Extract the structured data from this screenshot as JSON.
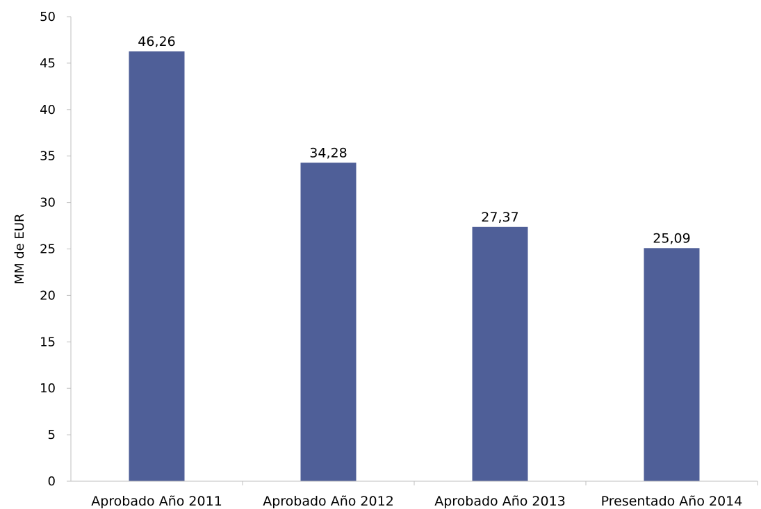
{
  "chart_data": {
    "type": "bar",
    "categories": [
      "Aprobado Año 2011",
      "Aprobado Año 2012",
      "Aprobado Año 2013",
      "Presentado Año 2014"
    ],
    "values": [
      46.26,
      34.28,
      27.37,
      25.09
    ],
    "value_labels": [
      "46,26",
      "34,28",
      "27,37",
      "25,09"
    ],
    "ylabel": "MM de EUR",
    "xlabel": "",
    "ylim": [
      0,
      50
    ],
    "yticks": [
      0,
      5,
      10,
      15,
      20,
      25,
      30,
      35,
      40,
      45,
      50
    ],
    "grid": false,
    "legend": "none",
    "bar_color": "#4F5F98",
    "axis_color": "#BFBFBF"
  }
}
